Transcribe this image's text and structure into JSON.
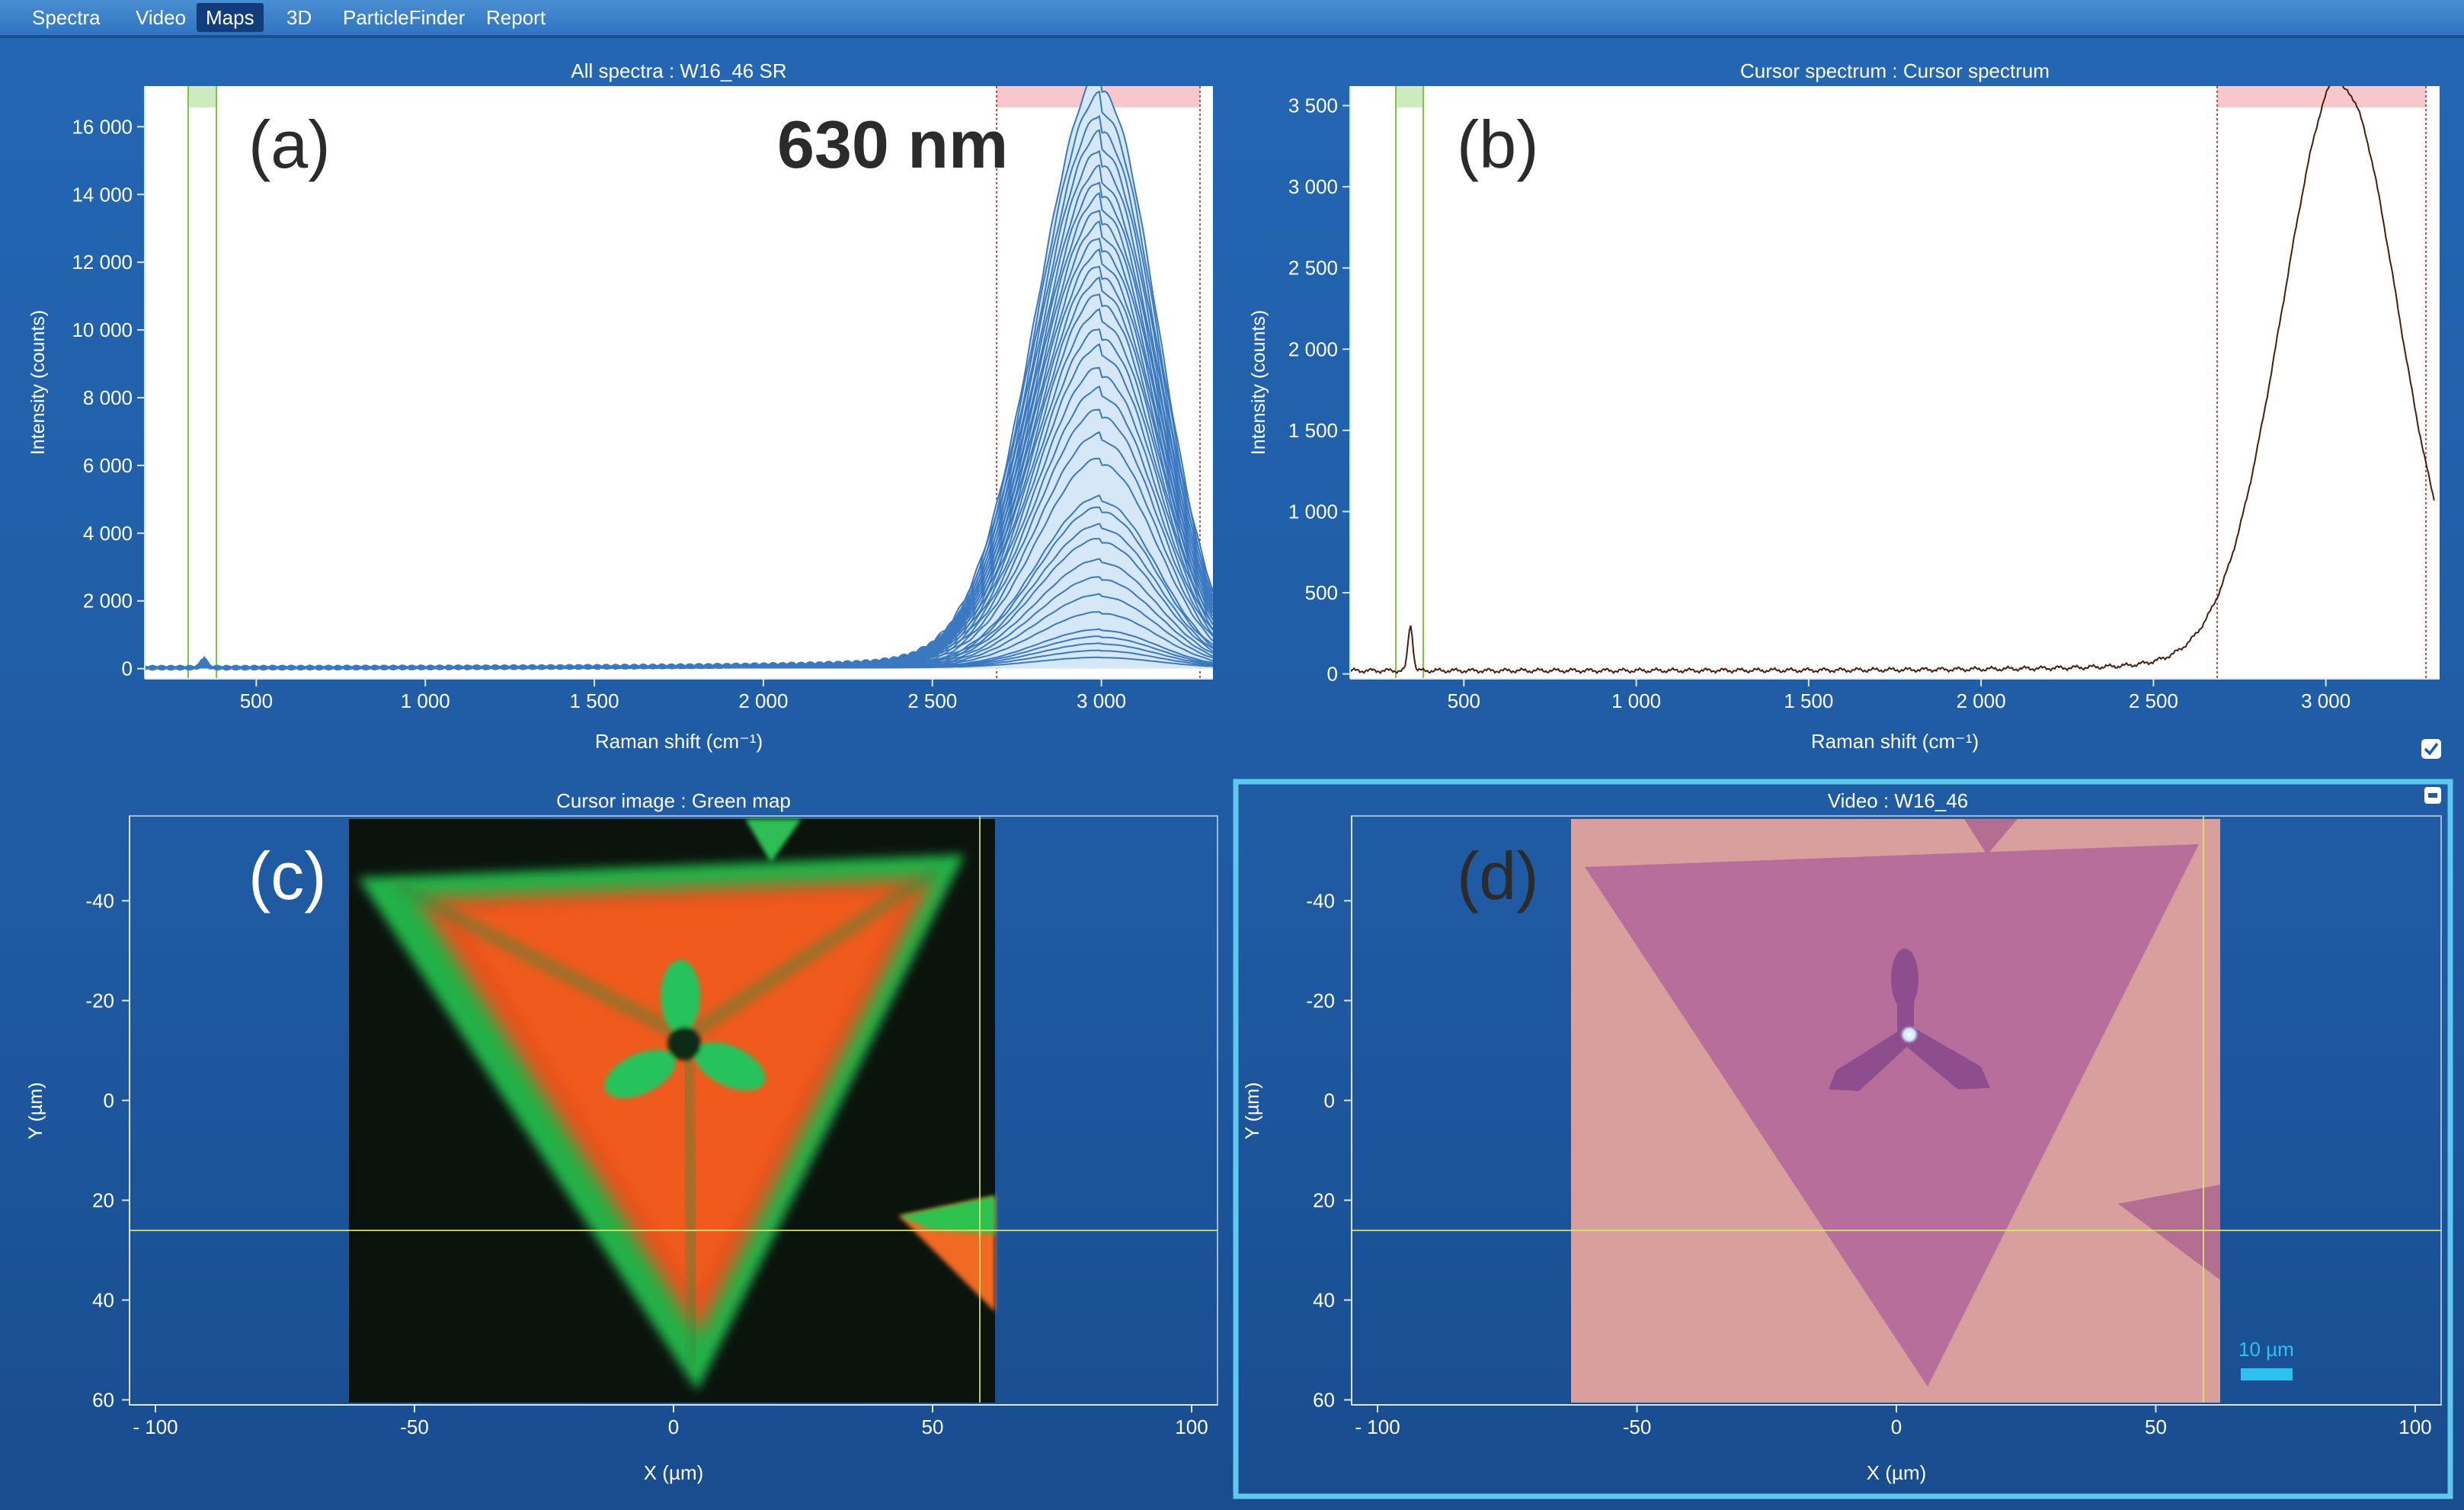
{
  "menu": {
    "items": [
      {
        "label": "Spectra",
        "active": false
      },
      {
        "label": "Video",
        "active": false
      },
      {
        "label": "Maps",
        "active": true
      },
      {
        "label": "3D",
        "active": false
      },
      {
        "label": "ParticleFinder",
        "active": false
      },
      {
        "label": "Report",
        "active": false
      }
    ]
  },
  "colors": {
    "background": "#1f5aa2",
    "spectrum_fill": "#d6e8f8",
    "spectrum_line": "#3b78c0",
    "cursor_spectrum_line": "#4a1e0c",
    "green_band": "#7ac943",
    "red_band": "#e05050",
    "selection_border": "#5ec8ee",
    "scale_bar": "#2ec0f0"
  },
  "panels": {
    "a": {
      "title": "All spectra : W16_46 SR",
      "label": "(a)",
      "annotation": "630 nm",
      "xlabel": "Raman shift (cm⁻¹)",
      "ylabel": "Intensity (counts)"
    },
    "b": {
      "title": "Cursor spectrum : Cursor spectrum",
      "label": "(b)",
      "xlabel": "Raman shift (cm⁻¹)",
      "ylabel": "Intensity (counts)"
    },
    "c": {
      "title": "Cursor image : Green map",
      "label": "(c)",
      "xlabel": "X (µm)",
      "ylabel": "Y (µm)"
    },
    "d": {
      "title": "Video : W16_46",
      "label": "(d)",
      "xlabel": "X (µm)",
      "ylabel": "Y (µm)",
      "scale_bar": "10 µm"
    }
  },
  "chart_data": [
    {
      "id": "a",
      "type": "line",
      "title": "All spectra : W16_46 SR",
      "xlabel": "Raman shift (cm⁻¹)",
      "ylabel": "Intensity (counts)",
      "xlim": [
        170,
        3330
      ],
      "ylim": [
        -300,
        17200
      ],
      "xticks": [
        500,
        1000,
        1500,
        2000,
        2500,
        3000
      ],
      "xtick_labels": [
        "500",
        "1 000",
        "1 500",
        "2 000",
        "2 500",
        "3 000"
      ],
      "yticks": [
        0,
        2000,
        4000,
        6000,
        8000,
        10000,
        12000,
        14000,
        16000
      ],
      "ytick_labels": [
        "0",
        "2 000",
        "4 000",
        "6 000",
        "8 000",
        "10 000",
        "12 000",
        "14 000",
        "16 000"
      ],
      "green_band": [
        300,
        390
      ],
      "red_band": [
        2690,
        3290
      ],
      "small_peak": {
        "x": 345,
        "y": 300
      },
      "peak_center": 3000,
      "series_peaks": [
        17000,
        16400,
        15800,
        15300,
        14800,
        14300,
        13900,
        13500,
        13100,
        12700,
        12300,
        11900,
        11500,
        11100,
        10700,
        10200,
        9700,
        9200,
        8600,
        8000,
        7400,
        6700,
        6000,
        4900,
        4600,
        4100,
        3700,
        3100,
        2600,
        2100,
        1600,
        1100,
        900,
        700,
        500,
        300
      ]
    },
    {
      "id": "b",
      "type": "line",
      "title": "Cursor spectrum : Cursor spectrum",
      "xlabel": "Raman shift (cm⁻¹)",
      "ylabel": "Intensity (counts)",
      "xlim": [
        170,
        3330
      ],
      "ylim": [
        -30,
        3620
      ],
      "xticks": [
        500,
        1000,
        1500,
        2000,
        2500,
        3000
      ],
      "xtick_labels": [
        "500",
        "1 000",
        "1 500",
        "2 000",
        "2 500",
        "3 000"
      ],
      "yticks": [
        0,
        500,
        1000,
        1500,
        2000,
        2500,
        3000,
        3500
      ],
      "ytick_labels": [
        "0",
        "500",
        "1 000",
        "1 500",
        "2 000",
        "2 500",
        "3 000",
        "3 500"
      ],
      "green_band": [
        300,
        390
      ],
      "red_band": [
        2690,
        3290
      ],
      "small_peak": {
        "x": 345,
        "y": 280
      },
      "peak": {
        "x": 3050,
        "y": 3580
      },
      "end_value": 1170
    },
    {
      "id": "c",
      "type": "heatmap",
      "title": "Cursor image : Green map",
      "xlabel": "X (µm)",
      "ylabel": "Y (µm)",
      "xlim": [
        -105,
        105
      ],
      "ylim": [
        -57,
        61
      ],
      "image_x": [
        -65,
        64
      ],
      "image_y": [
        -57,
        60
      ],
      "xticks": [
        -100,
        -50,
        0,
        50,
        100
      ],
      "xtick_labels": [
        "- 100",
        "-50",
        "0",
        "50",
        "100"
      ],
      "yticks": [
        -40,
        -20,
        0,
        20,
        40,
        60
      ],
      "ytick_labels": [
        "-40",
        "-20",
        "0",
        "20",
        "40",
        "60"
      ],
      "cursor": {
        "x": 60,
        "y": 25
      },
      "triangle": [
        [
          -62,
          -48
        ],
        [
          57,
          -48
        ],
        [
          5,
          55
        ]
      ],
      "center": [
        2,
        -12
      ]
    },
    {
      "id": "d",
      "type": "heatmap",
      "title": "Video : W16_46",
      "xlabel": "X (µm)",
      "ylabel": "Y (µm)",
      "xlim": [
        -105,
        105
      ],
      "ylim": [
        -57,
        61
      ],
      "image_x": [
        -65,
        64
      ],
      "image_y": [
        -57,
        60
      ],
      "xticks": [
        -100,
        -50,
        0,
        50,
        100
      ],
      "xtick_labels": [
        "- 100",
        "-50",
        "0",
        "50",
        "100"
      ],
      "yticks": [
        -40,
        -20,
        0,
        20,
        40,
        60
      ],
      "ytick_labels": [
        "-40",
        "-20",
        "0",
        "20",
        "40",
        "60"
      ],
      "cursor": {
        "x": 60,
        "y": 25
      },
      "triangle": [
        [
          -62,
          -48
        ],
        [
          57,
          -52
        ],
        [
          5,
          55
        ]
      ],
      "center": [
        1,
        -13
      ]
    }
  ]
}
